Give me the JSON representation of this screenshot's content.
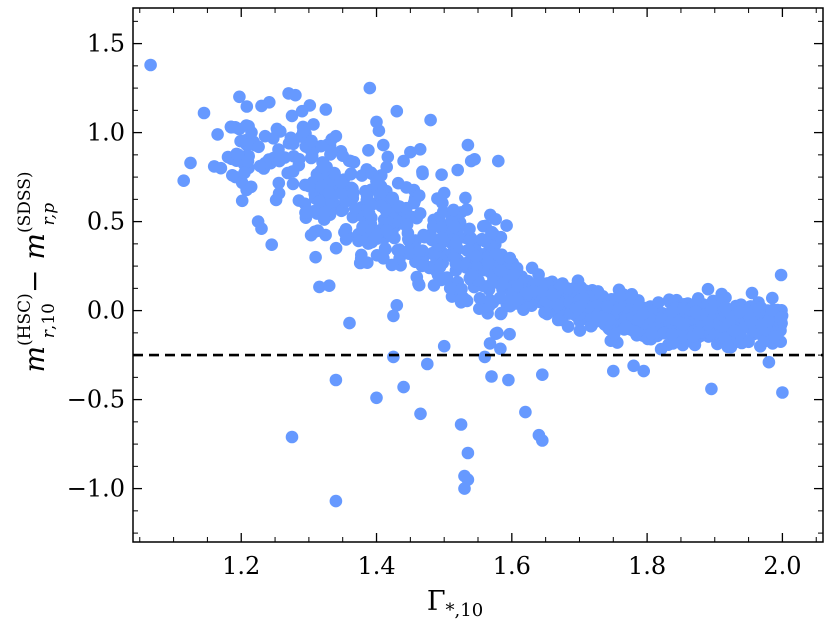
{
  "colors": {
    "points": "#6699ff",
    "axis": "#000000",
    "reference_line": "#000000"
  },
  "chart_data": {
    "type": "scatter",
    "title": "",
    "xlabel": "Γ*,10",
    "ylabel": "m r,10 (HSC) − m r,p (SDSS)",
    "xlim": [
      1.04,
      2.06
    ],
    "ylim": [
      -1.3,
      1.7
    ],
    "x_ticks": [
      1.2,
      1.4,
      1.6,
      1.8,
      2.0
    ],
    "x_tick_labels": [
      "1.2",
      "1.4",
      "1.6",
      "1.8",
      "2.0"
    ],
    "y_ticks": [
      -1.0,
      -0.5,
      0.0,
      0.5,
      1.0,
      1.5
    ],
    "y_tick_labels": [
      "−1.0",
      "−0.5",
      "0.0",
      "0.5",
      "1.0",
      "1.5"
    ],
    "grid": false,
    "legend": "none",
    "reference_line": {
      "orientation": "horizontal",
      "y": -0.25,
      "style": "dashed"
    },
    "cloud_description": "dense band of ~1000 points following a decreasing trend, plateauing near 0 for Γ above 1.7",
    "outliers": [
      [
        1.066,
        1.38
      ],
      [
        1.115,
        0.73
      ],
      [
        1.125,
        0.83
      ],
      [
        1.145,
        1.11
      ],
      [
        1.16,
        0.81
      ],
      [
        1.165,
        0.99
      ],
      [
        1.17,
        0.8
      ],
      [
        1.185,
        1.03
      ],
      [
        1.21,
        0.84
      ],
      [
        1.225,
        0.5
      ],
      [
        1.23,
        1.15
      ],
      [
        1.23,
        0.46
      ],
      [
        1.245,
        0.37
      ],
      [
        1.27,
        1.22
      ],
      [
        1.28,
        1.21
      ],
      [
        1.29,
        1.12
      ],
      [
        1.295,
        0.55
      ],
      [
        1.3,
        0.7
      ],
      [
        1.31,
        0.3
      ],
      [
        1.325,
        1.13
      ],
      [
        1.34,
        0.98
      ],
      [
        1.33,
        0.14
      ],
      [
        1.35,
        0.87
      ],
      [
        1.355,
        0.4
      ],
      [
        1.36,
        -0.07
      ],
      [
        1.39,
        1.25
      ],
      [
        1.4,
        1.06
      ],
      [
        1.41,
        0.93
      ],
      [
        1.43,
        1.12
      ],
      [
        1.43,
        0.03
      ],
      [
        1.425,
        -0.03
      ],
      [
        1.44,
        0.84
      ],
      [
        1.45,
        0.89
      ],
      [
        1.48,
        1.07
      ],
      [
        1.49,
        0.63
      ],
      [
        1.5,
        0.66
      ],
      [
        1.515,
        0.47
      ],
      [
        1.52,
        0.79
      ],
      [
        1.535,
        0.93
      ],
      [
        1.54,
        0.84
      ],
      [
        1.545,
        0.85
      ],
      [
        1.56,
        0.39
      ],
      [
        1.58,
        0.84
      ],
      [
        1.63,
        0.24
      ],
      [
        1.645,
        0.11
      ],
      [
        1.66,
        0.09
      ],
      [
        1.7,
        0.02
      ],
      [
        1.76,
        0.08
      ],
      [
        1.89,
        0.12
      ],
      [
        1.895,
        0.01
      ],
      [
        1.985,
        0.07
      ],
      [
        1.998,
        0.2
      ],
      [
        1.998,
        -0.04
      ],
      [
        1.275,
        -0.71
      ],
      [
        1.34,
        -1.07
      ],
      [
        1.34,
        -0.39
      ],
      [
        1.4,
        -0.49
      ],
      [
        1.425,
        -0.26
      ],
      [
        1.44,
        -0.43
      ],
      [
        1.465,
        -0.58
      ],
      [
        1.475,
        -0.3
      ],
      [
        1.5,
        -0.2
      ],
      [
        1.525,
        -0.64
      ],
      [
        1.53,
        -0.93
      ],
      [
        1.535,
        -0.95
      ],
      [
        1.535,
        -0.8
      ],
      [
        1.53,
        -1.0
      ],
      [
        1.56,
        -0.26
      ],
      [
        1.57,
        -0.37
      ],
      [
        1.595,
        -0.39
      ],
      [
        1.62,
        -0.57
      ],
      [
        1.64,
        -0.7
      ],
      [
        1.645,
        -0.73
      ],
      [
        1.645,
        -0.36
      ],
      [
        1.75,
        -0.34
      ],
      [
        1.78,
        -0.31
      ],
      [
        1.795,
        -0.34
      ],
      [
        1.895,
        -0.44
      ],
      [
        1.98,
        -0.29
      ],
      [
        2.0,
        -0.46
      ]
    ]
  }
}
